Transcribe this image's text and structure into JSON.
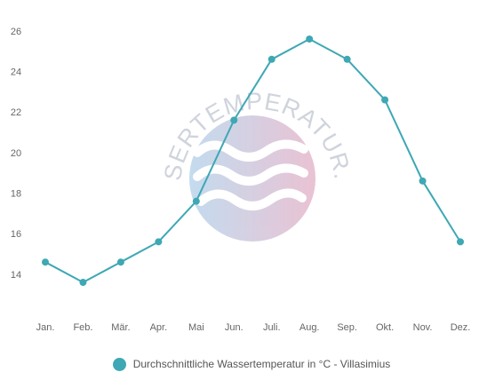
{
  "chart_data": {
    "type": "line",
    "categories": [
      "Jan.",
      "Feb.",
      "Mär.",
      "Apr.",
      "Mai",
      "Jun.",
      "Juli.",
      "Aug.",
      "Sep.",
      "Okt.",
      "Nov.",
      "Dez."
    ],
    "series": [
      {
        "name": "Durchschnittliche Wassertemperatur in °C - Villasimius",
        "values": [
          14.6,
          13.6,
          14.6,
          15.6,
          17.6,
          21.6,
          24.6,
          25.6,
          24.6,
          22.6,
          18.6,
          15.6
        ],
        "color": "#3ea8b4"
      }
    ],
    "yticks": [
      14,
      16,
      18,
      20,
      22,
      24,
      26
    ],
    "ylim": [
      12.2,
      27
    ],
    "grid": false,
    "legend_position": "bottom-center"
  },
  "watermark": {
    "text": "WASSERTEMPERATUR.ORG",
    "colors": [
      "#b9d6ec",
      "#e6b8cc"
    ]
  }
}
